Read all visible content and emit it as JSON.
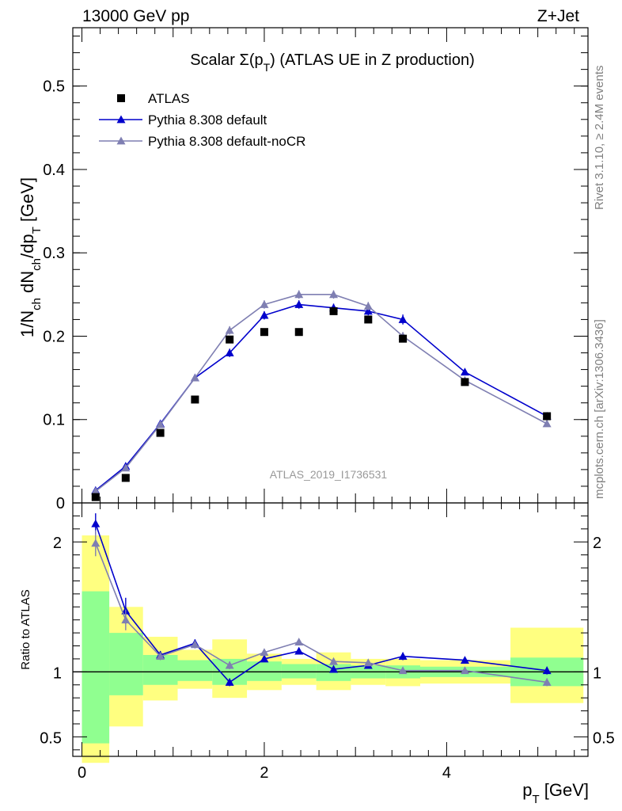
{
  "header": {
    "energy_label": "13000 GeV pp",
    "process_label": "Z+Jet"
  },
  "side_labels": {
    "rivet": "Rivet 3.1.10, ≥ 2.4M events",
    "mcplots": "mcplots.cern.ch [arXiv:1306.3436]"
  },
  "chart_data": [
    {
      "type": "scatter",
      "panel": "main",
      "title": "Scalar Σ(p_T) (ATLAS UE in Z production)",
      "ylabel": "1/N_ch dN_ch/dp_T [GeV]",
      "watermark": "ATLAS_2019_I1736531",
      "xlim": [
        -0.1,
        5.55
      ],
      "ylim": [
        0,
        0.57
      ],
      "yticks": [
        0,
        0.1,
        0.2,
        0.3,
        0.4,
        0.5
      ],
      "ytick_labels": [
        "0",
        "0.1",
        "0.2",
        "0.3",
        "0.4",
        "0.5"
      ],
      "legend_position": "top-left",
      "series": [
        {
          "name": "ATLAS",
          "color": "#000000",
          "marker": "square",
          "x": [
            0.15,
            0.48,
            0.86,
            1.24,
            1.62,
            2.0,
            2.38,
            2.76,
            3.14,
            3.52,
            4.2,
            5.1
          ],
          "values": [
            0.007,
            0.03,
            0.084,
            0.124,
            0.196,
            0.205,
            0.205,
            0.23,
            0.22,
            0.197,
            0.145,
            0.104
          ]
        },
        {
          "name": "Pythia 8.308 default",
          "color": "#0000cc",
          "marker": "triangle",
          "x": [
            0.15,
            0.48,
            0.86,
            1.24,
            1.62,
            2.0,
            2.38,
            2.76,
            3.14,
            3.52,
            4.2,
            5.1
          ],
          "values": [
            0.015,
            0.044,
            0.095,
            0.15,
            0.18,
            0.225,
            0.238,
            0.234,
            0.23,
            0.22,
            0.157,
            0.104
          ],
          "errors": [
            0.001,
            0.002,
            0.003,
            0.003,
            0.005,
            0.005,
            0.005,
            0.005,
            0.005,
            0.006,
            0.004,
            0.003
          ]
        },
        {
          "name": "Pythia 8.308 default-noCR",
          "color": "#7f7fb2",
          "marker": "triangle",
          "x": [
            0.15,
            0.48,
            0.86,
            1.24,
            1.62,
            2.0,
            2.38,
            2.76,
            3.14,
            3.52,
            4.2,
            5.1
          ],
          "values": [
            0.014,
            0.042,
            0.094,
            0.15,
            0.207,
            0.238,
            0.25,
            0.25,
            0.236,
            0.2,
            0.147,
            0.095
          ],
          "errors": [
            0.001,
            0.002,
            0.003,
            0.003,
            0.005,
            0.005,
            0.005,
            0.005,
            0.005,
            0.005,
            0.004,
            0.003
          ]
        }
      ]
    },
    {
      "type": "scatter",
      "panel": "ratio",
      "ylabel": "Ratio to ATLAS",
      "xlabel": "p_T [GeV]",
      "xlim": [
        -0.1,
        5.55
      ],
      "ylim": [
        0.35,
        2.3
      ],
      "xticks": [
        0,
        2,
        4
      ],
      "xtick_labels": [
        "0",
        "2",
        "4"
      ],
      "yticks": [
        0.5,
        1,
        2
      ],
      "ytick_labels": [
        "0.5",
        "1",
        "2"
      ],
      "reference_line": 1,
      "bands": [
        {
          "x0": 0.0,
          "x1": 0.3,
          "inner": [
            0.45,
            1.62
          ],
          "outer": [
            0.3,
            2.05
          ]
        },
        {
          "x0": 0.3,
          "x1": 0.67,
          "inner": [
            0.82,
            1.3
          ],
          "outer": [
            0.58,
            1.5
          ]
        },
        {
          "x0": 0.67,
          "x1": 1.05,
          "inner": [
            0.9,
            1.13
          ],
          "outer": [
            0.78,
            1.27
          ]
        },
        {
          "x0": 1.05,
          "x1": 1.43,
          "inner": [
            0.93,
            1.09
          ],
          "outer": [
            0.87,
            1.17
          ]
        },
        {
          "x0": 1.43,
          "x1": 1.81,
          "inner": [
            0.9,
            1.1
          ],
          "outer": [
            0.8,
            1.25
          ]
        },
        {
          "x0": 1.81,
          "x1": 2.19,
          "inner": [
            0.93,
            1.08
          ],
          "outer": [
            0.86,
            1.14
          ]
        },
        {
          "x0": 2.19,
          "x1": 2.57,
          "inner": [
            0.95,
            1.06
          ],
          "outer": [
            0.9,
            1.1
          ]
        },
        {
          "x0": 2.57,
          "x1": 2.95,
          "inner": [
            0.93,
            1.06
          ],
          "outer": [
            0.86,
            1.15
          ]
        },
        {
          "x0": 2.95,
          "x1": 3.33,
          "inner": [
            0.95,
            1.05
          ],
          "outer": [
            0.9,
            1.1
          ]
        },
        {
          "x0": 3.33,
          "x1": 3.71,
          "inner": [
            0.95,
            1.05
          ],
          "outer": [
            0.89,
            1.1
          ]
        },
        {
          "x0": 3.71,
          "x1": 4.7,
          "inner": [
            0.96,
            1.04
          ],
          "outer": [
            0.91,
            1.09
          ]
        },
        {
          "x0": 4.7,
          "x1": 5.5,
          "inner": [
            0.89,
            1.11
          ],
          "outer": [
            0.76,
            1.34
          ]
        }
      ],
      "series": [
        {
          "name": "Pythia 8.308 default",
          "color": "#0000cc",
          "marker": "triangle",
          "x": [
            0.15,
            0.48,
            0.86,
            1.24,
            1.62,
            2.0,
            2.38,
            2.76,
            3.14,
            3.52,
            4.2,
            5.1
          ],
          "values": [
            2.14,
            1.47,
            1.13,
            1.22,
            0.92,
            1.1,
            1.16,
            1.02,
            1.05,
            1.12,
            1.09,
            1.01
          ],
          "errors": [
            0.08,
            0.1,
            0.03,
            0.03,
            0.03,
            0.02,
            0.02,
            0.02,
            0.02,
            0.03,
            0.02,
            0.03
          ]
        },
        {
          "name": "Pythia 8.308 default-noCR",
          "color": "#7f7fb2",
          "marker": "triangle",
          "x": [
            0.15,
            0.48,
            0.86,
            1.24,
            1.62,
            2.0,
            2.38,
            2.76,
            3.14,
            3.52,
            4.2,
            5.1
          ],
          "values": [
            1.99,
            1.4,
            1.12,
            1.21,
            1.05,
            1.15,
            1.23,
            1.08,
            1.07,
            1.01,
            1.01,
            0.92
          ],
          "errors": [
            0.1,
            0.08,
            0.03,
            0.03,
            0.03,
            0.02,
            0.02,
            0.02,
            0.02,
            0.02,
            0.02,
            0.03
          ]
        }
      ]
    }
  ]
}
